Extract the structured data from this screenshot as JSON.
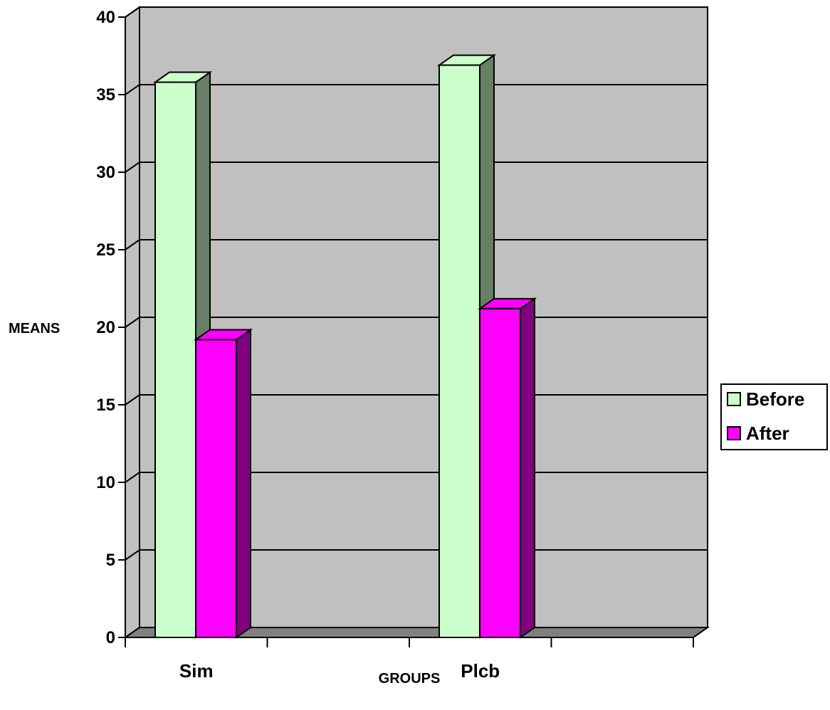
{
  "chart_data": {
    "type": "bar",
    "title": "",
    "xlabel": "GROUPS",
    "ylabel": "MEANS",
    "categories": [
      "Sim",
      "Plcb"
    ],
    "series": [
      {
        "name": "Before",
        "values": [
          35.8,
          36.9
        ],
        "color": "#ccffcc",
        "side_color": "#667f66"
      },
      {
        "name": "After",
        "values": [
          19.2,
          21.2
        ],
        "color": "#ff00ff",
        "side_color": "#800080"
      }
    ],
    "ylim": [
      0,
      40
    ],
    "yticks": [
      "0",
      "5",
      "10",
      "15",
      "20",
      "25",
      "30",
      "35",
      "40"
    ],
    "grid": true,
    "legend_position": "right",
    "wall_color": "#c0c0c0",
    "floor_color": "#808080"
  }
}
